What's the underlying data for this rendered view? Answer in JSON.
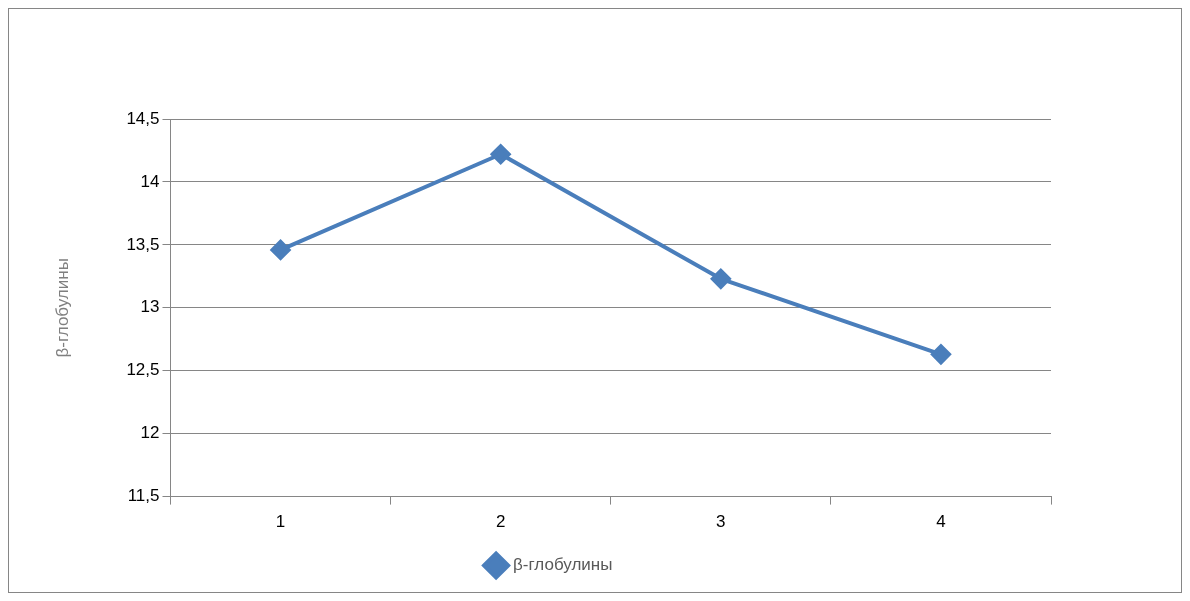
{
  "chart_data": {
    "type": "line",
    "ylabel": "β-глобулины",
    "categories": [
      "1",
      "2",
      "3",
      "4"
    ],
    "series": [
      {
        "name": "β-глобулины",
        "color": "#4a7ebb",
        "values": [
          13.46,
          14.22,
          13.23,
          12.63
        ]
      }
    ],
    "ylim": [
      11.5,
      14.5
    ],
    "yticks": [
      {
        "value": 11.5,
        "label": "11,5"
      },
      12,
      {
        "value": 12.5,
        "label": "12,5"
      },
      13,
      {
        "value": 13.5,
        "label": "13,5"
      },
      14,
      {
        "value": 14.5,
        "label": "14,5"
      }
    ],
    "grid": "y",
    "legend": "bottom",
    "marker": "diamond",
    "line_style": "solid"
  }
}
